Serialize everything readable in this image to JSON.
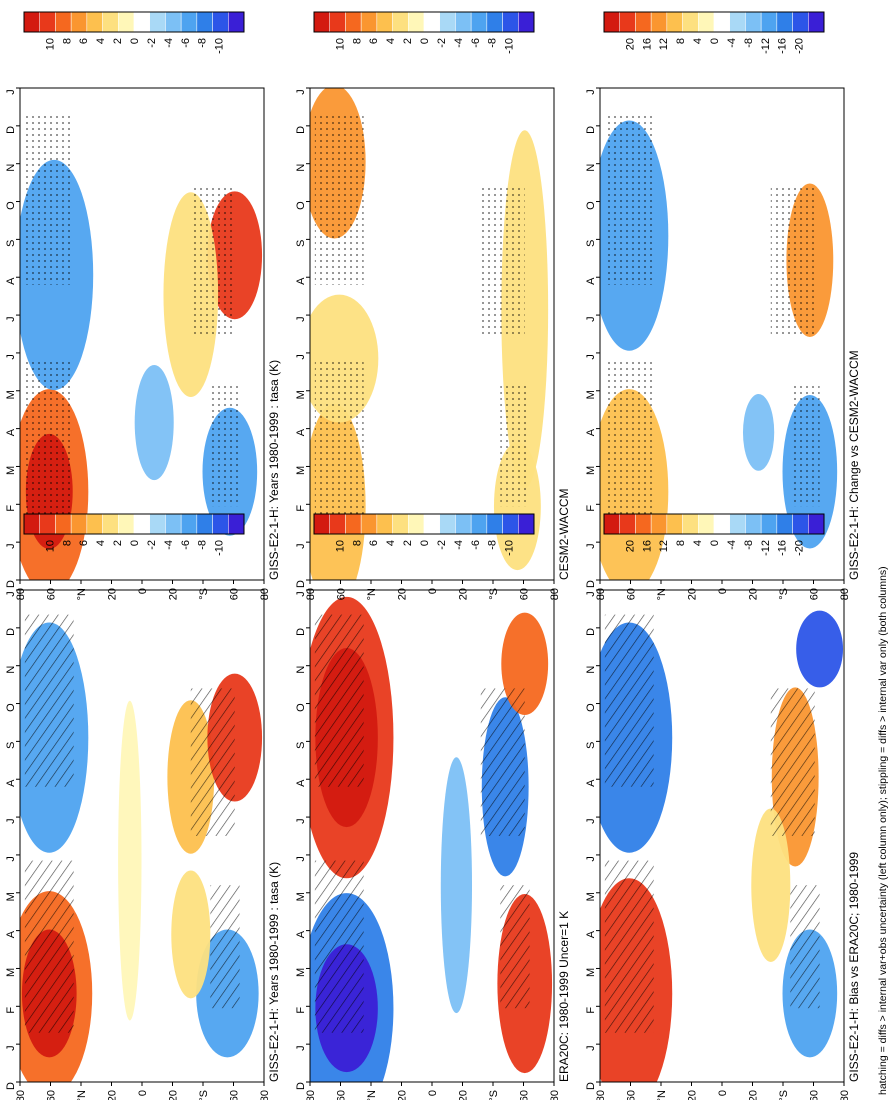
{
  "figure": {
    "footnote": "hatching = diffs > internal var+obs uncertainty (left column only); stippling = diffs > internal var only (both columns)",
    "palette": [
      "#3a1fd6",
      "#2c55e8",
      "#2f7fe8",
      "#4ea3f0",
      "#7cc0f5",
      "#a9d9f6",
      "#ffffff",
      "#fff7b8",
      "#fde080",
      "#fdc04e",
      "#fa9630",
      "#f5681f",
      "#e8391b",
      "#d31a10"
    ]
  },
  "chart_data": [
    {
      "type": "heatmap",
      "panel": "left-top",
      "title": "GISS-E2-1-H: Years 1980-1999 : tasa (K)",
      "xlabel": "",
      "ylabel": "",
      "x_ticks": [
        "D",
        "J",
        "F",
        "M",
        "A",
        "M",
        "J",
        "J",
        "A",
        "S",
        "O",
        "N",
        "D",
        "J"
      ],
      "y_ticks": [
        "80",
        "60",
        "°N",
        "20",
        "0",
        "20",
        "°S",
        "60",
        "80"
      ],
      "colorbar_ticks": [
        "10",
        "8",
        "6",
        "4",
        "2",
        "0",
        "-2",
        "-4",
        "-6",
        "-8",
        "-10"
      ],
      "overlay": "hatching"
    },
    {
      "type": "heatmap",
      "panel": "left-middle",
      "title": "ERA20C: 1980-1999 Uncer=1 K",
      "xlabel": "",
      "ylabel": "",
      "x_ticks": [
        "D",
        "J",
        "F",
        "M",
        "A",
        "M",
        "J",
        "J",
        "A",
        "S",
        "O",
        "N",
        "D",
        "J"
      ],
      "y_ticks": [
        "80",
        "60",
        "°N",
        "20",
        "0",
        "20",
        "°S",
        "60",
        "80"
      ],
      "colorbar_ticks": [
        "10",
        "8",
        "6",
        "4",
        "2",
        "0",
        "-2",
        "-4",
        "-6",
        "-8",
        "-10"
      ],
      "overlay": "hatching"
    },
    {
      "type": "heatmap",
      "panel": "left-bottom",
      "title": "GISS-E2-1-H: Bias vs ERA20C; 1980-1999",
      "xlabel": "",
      "ylabel": "",
      "x_ticks": [
        "D",
        "J",
        "F",
        "M",
        "A",
        "M",
        "J",
        "J",
        "A",
        "S",
        "O",
        "N",
        "D",
        "J"
      ],
      "y_ticks": [
        "80",
        "60",
        "°N",
        "20",
        "0",
        "20",
        "°S",
        "60",
        "80"
      ],
      "colorbar_ticks": [
        "20",
        "16",
        "12",
        "8",
        "4",
        "0",
        "-4",
        "-8",
        "-12",
        "-16",
        "-20"
      ],
      "overlay": "hatching"
    },
    {
      "type": "heatmap",
      "panel": "right-top",
      "title": "GISS-E2-1-H: Years 1980-1999 : tasa (K)",
      "xlabel": "",
      "ylabel": "",
      "x_ticks": [
        "D",
        "J",
        "F",
        "M",
        "A",
        "M",
        "J",
        "J",
        "A",
        "S",
        "O",
        "N",
        "D",
        "J"
      ],
      "y_ticks": [
        "80",
        "60",
        "°N",
        "20",
        "0",
        "20",
        "°S",
        "60",
        "80"
      ],
      "colorbar_ticks": [
        "10",
        "8",
        "6",
        "4",
        "2",
        "0",
        "-2",
        "-4",
        "-6",
        "-8",
        "-10"
      ],
      "overlay": "stippling"
    },
    {
      "type": "heatmap",
      "panel": "right-middle",
      "title": "CESM2-WACCM",
      "xlabel": "",
      "ylabel": "",
      "x_ticks": [
        "D",
        "J",
        "F",
        "M",
        "A",
        "M",
        "J",
        "J",
        "A",
        "S",
        "O",
        "N",
        "D",
        "J"
      ],
      "y_ticks": [
        "80",
        "60",
        "°N",
        "20",
        "0",
        "20",
        "°S",
        "60",
        "80"
      ],
      "colorbar_ticks": [
        "10",
        "8",
        "6",
        "4",
        "2",
        "0",
        "-2",
        "-4",
        "-6",
        "-8",
        "-10"
      ],
      "overlay": "stippling"
    },
    {
      "type": "heatmap",
      "panel": "right-bottom",
      "title": "GISS-E2-1-H: Change vs CESM2-WACCM",
      "xlabel": "",
      "ylabel": "",
      "x_ticks": [
        "D",
        "J",
        "F",
        "M",
        "A",
        "M",
        "J",
        "J",
        "A",
        "S",
        "O",
        "N",
        "D",
        "J"
      ],
      "y_ticks": [
        "80",
        "60",
        "°N",
        "20",
        "0",
        "20",
        "°S",
        "60",
        "80"
      ],
      "colorbar_ticks": [
        "20",
        "16",
        "12",
        "8",
        "4",
        "0",
        "-4",
        "-8",
        "-12",
        "-16",
        "-20"
      ],
      "overlay": "stippling"
    }
  ]
}
